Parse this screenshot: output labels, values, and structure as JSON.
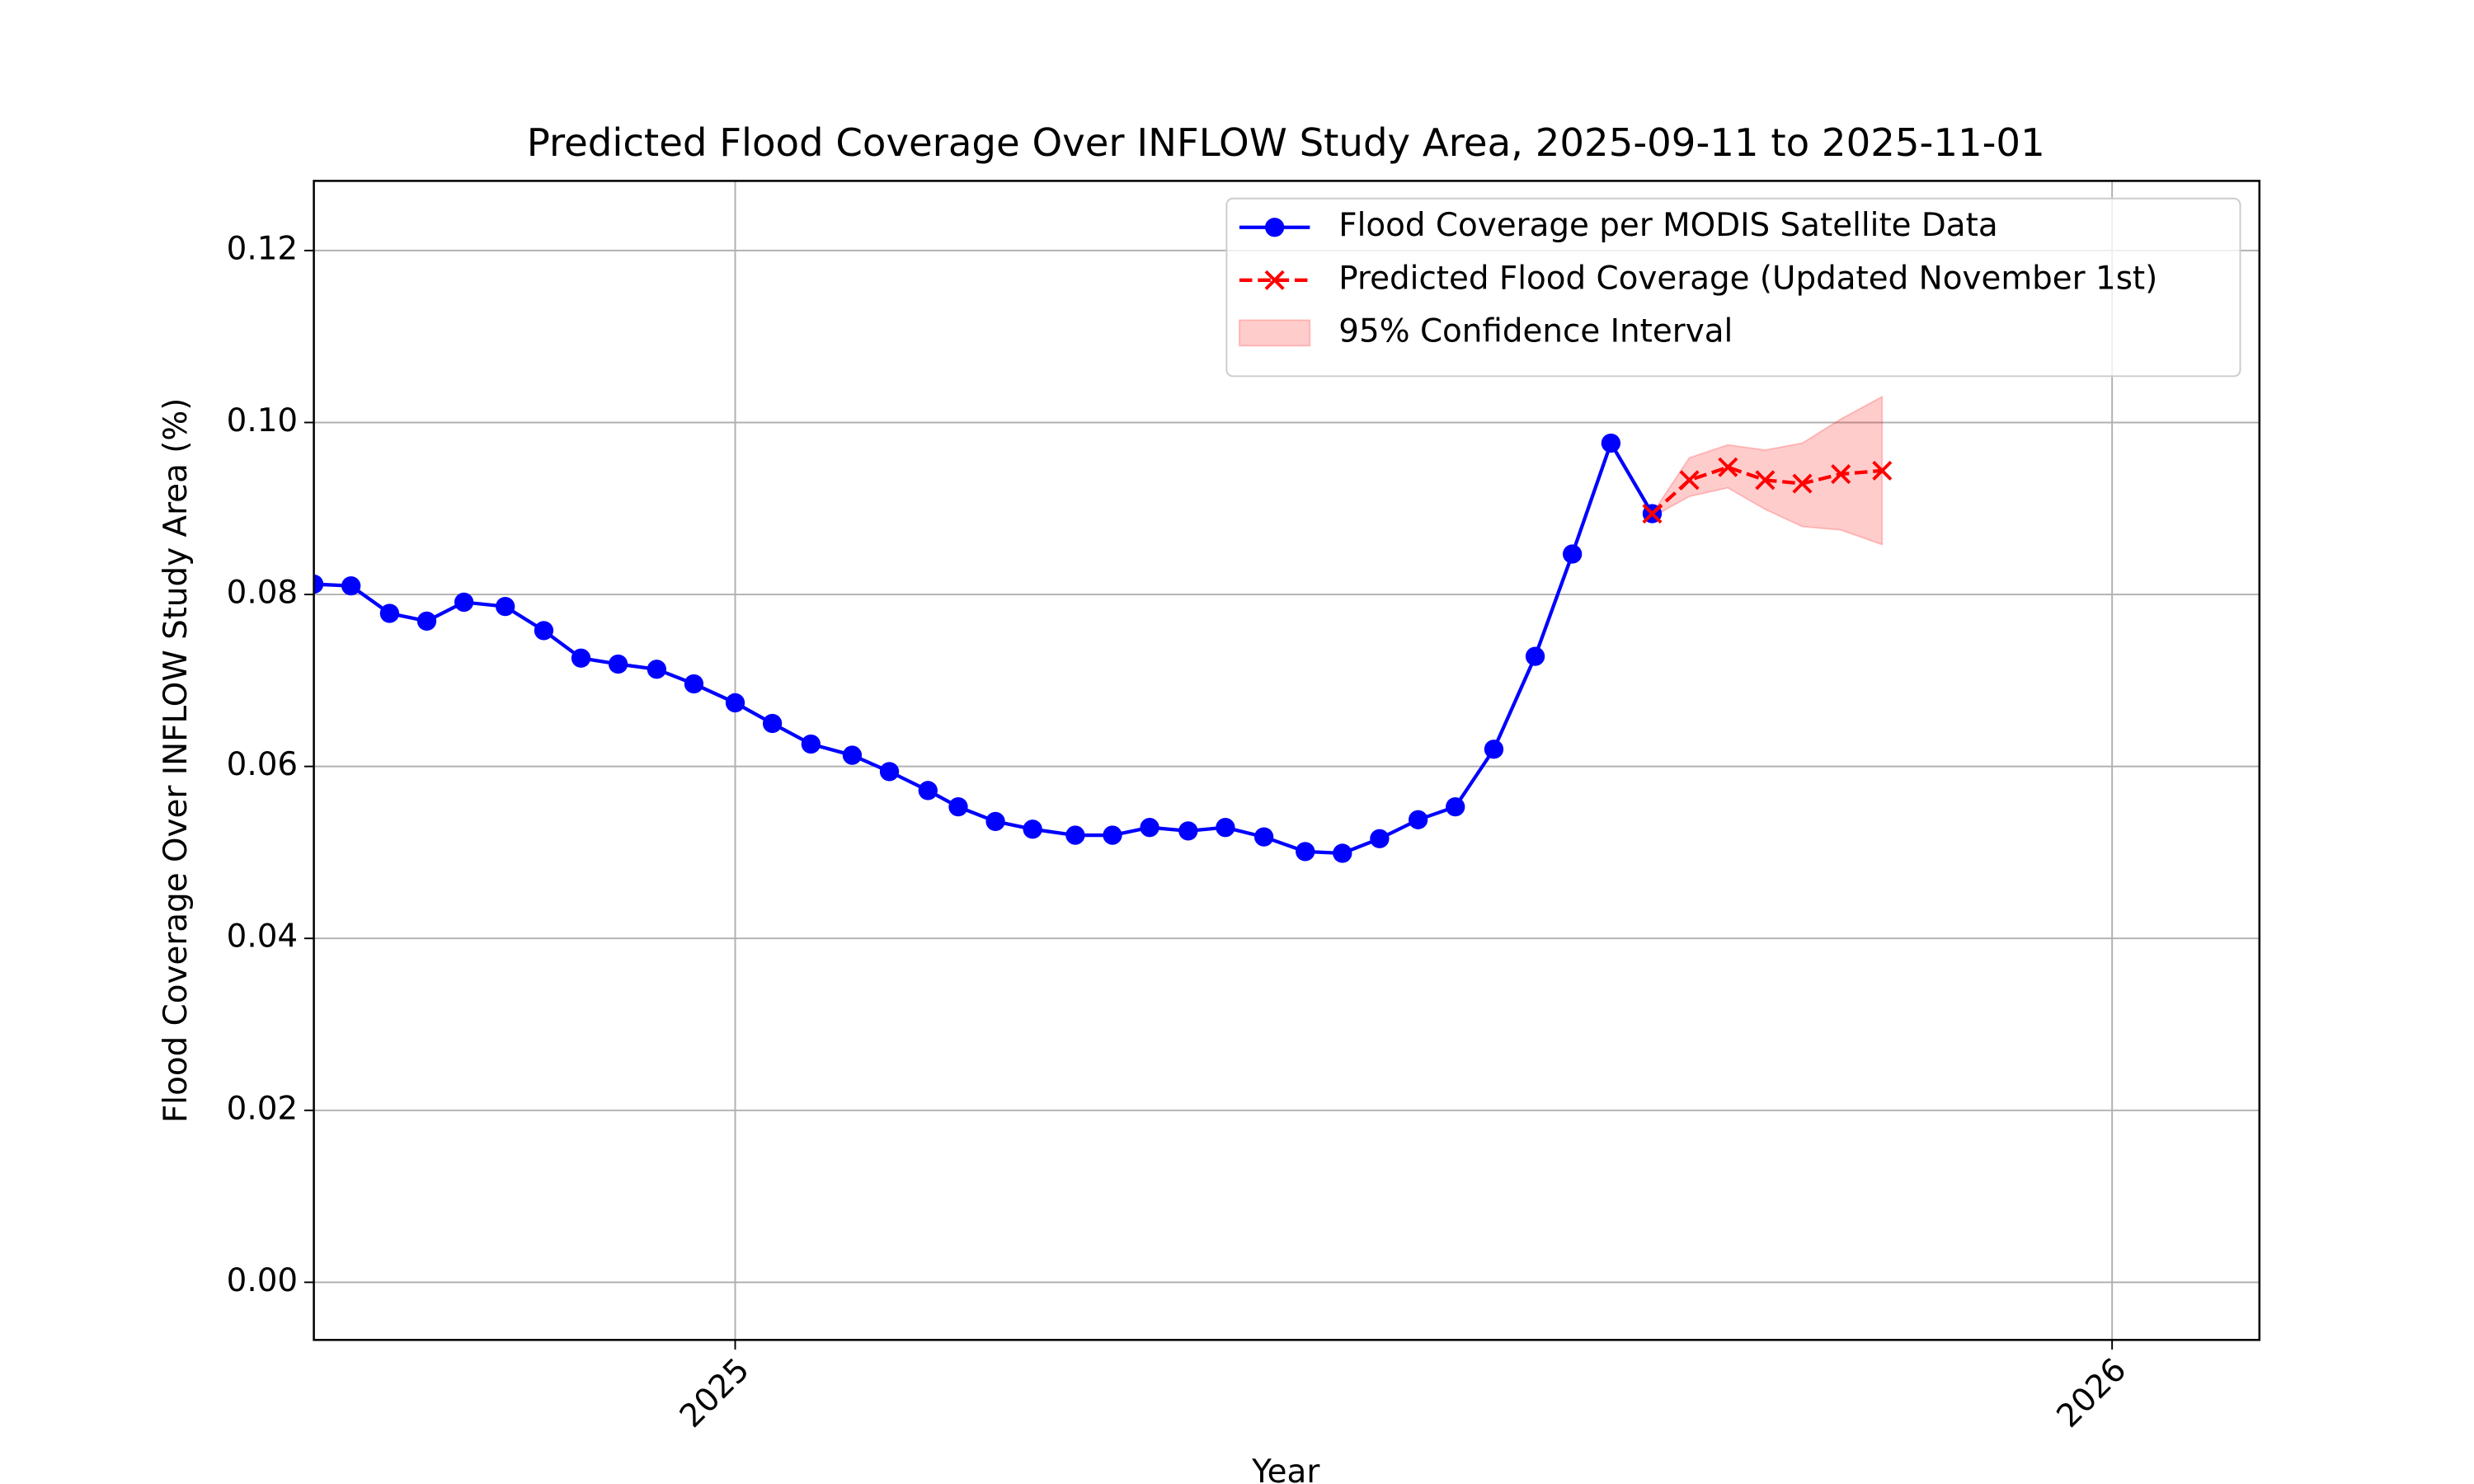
{
  "chart_data": {
    "type": "line",
    "title": "Predicted Flood Coverage Over INFLOW Study Area, 2025-09-11 to 2025-11-01",
    "xlabel": "Year",
    "ylabel": "Flood Coverage Over INFLOW Study Area (%)",
    "xlim": [
      2024.694,
      2026.107
    ],
    "xticks": [
      2025,
      2026
    ],
    "ylim": [
      -0.0067,
      0.1281
    ],
    "yticks": [
      {
        "value": 0,
        "label": "0.00"
      },
      {
        "value": 0.02,
        "label": "0.02"
      },
      {
        "value": 0.04,
        "label": "0.04"
      },
      {
        "value": 0.06,
        "label": "0.06"
      },
      {
        "value": 0.08,
        "label": "0.08"
      },
      {
        "value": 0.1,
        "label": "0.10"
      },
      {
        "value": 0.12,
        "label": "0.12"
      }
    ],
    "grid": true,
    "legend": "upper right",
    "series": [
      {
        "name": "Flood Coverage per MODIS Satellite Data",
        "color": "#0000ff",
        "marker": "circle",
        "linestyle": "solid",
        "x": [
          2024.694,
          2024.721,
          2024.749,
          2024.776,
          2024.803,
          2024.833,
          2024.861,
          2024.888,
          2024.915,
          2024.943,
          2024.97,
          2025.0,
          2025.027,
          2025.055,
          2025.085,
          2025.112,
          2025.14,
          2025.162,
          2025.189,
          2025.216,
          2025.247,
          2025.274,
          2025.301,
          2025.329,
          2025.356,
          2025.384,
          2025.414,
          2025.441,
          2025.468,
          2025.496,
          2025.523,
          2025.551,
          2025.581,
          2025.608,
          2025.636,
          2025.666
        ],
        "values": [
          0.0812,
          0.081,
          0.0778,
          0.0769,
          0.0791,
          0.0786,
          0.0758,
          0.0726,
          0.0719,
          0.0713,
          0.0696,
          0.0674,
          0.065,
          0.0626,
          0.0613,
          0.0594,
          0.0572,
          0.0553,
          0.0536,
          0.0527,
          0.052,
          0.052,
          0.0529,
          0.0525,
          0.0529,
          0.0518,
          0.0501,
          0.0499,
          0.0516,
          0.0538,
          0.0553,
          0.062,
          0.0728,
          0.0847,
          0.0976,
          0.0894
        ]
      },
      {
        "name": "Predicted Flood Coverage (Updated November 1st)",
        "color": "#ff0000",
        "marker": "x",
        "linestyle": "dashed",
        "x": [
          2025.666,
          2025.693,
          2025.721,
          2025.748,
          2025.775,
          2025.803,
          2025.833
        ],
        "values": [
          0.0894,
          0.0933,
          0.0948,
          0.0933,
          0.0929,
          0.094,
          0.0944
        ]
      },
      {
        "name": "95% Confidence Interval",
        "color": "#ff0000",
        "type": "band",
        "alpha": 0.2,
        "x": [
          2025.666,
          2025.693,
          2025.721,
          2025.748,
          2025.775,
          2025.803,
          2025.833
        ],
        "lower": [
          0.089,
          0.0914,
          0.0924,
          0.0899,
          0.0879,
          0.0875,
          0.0858
        ],
        "upper": [
          0.0894,
          0.0959,
          0.0974,
          0.0968,
          0.0976,
          0.1004,
          0.103
        ]
      }
    ]
  }
}
